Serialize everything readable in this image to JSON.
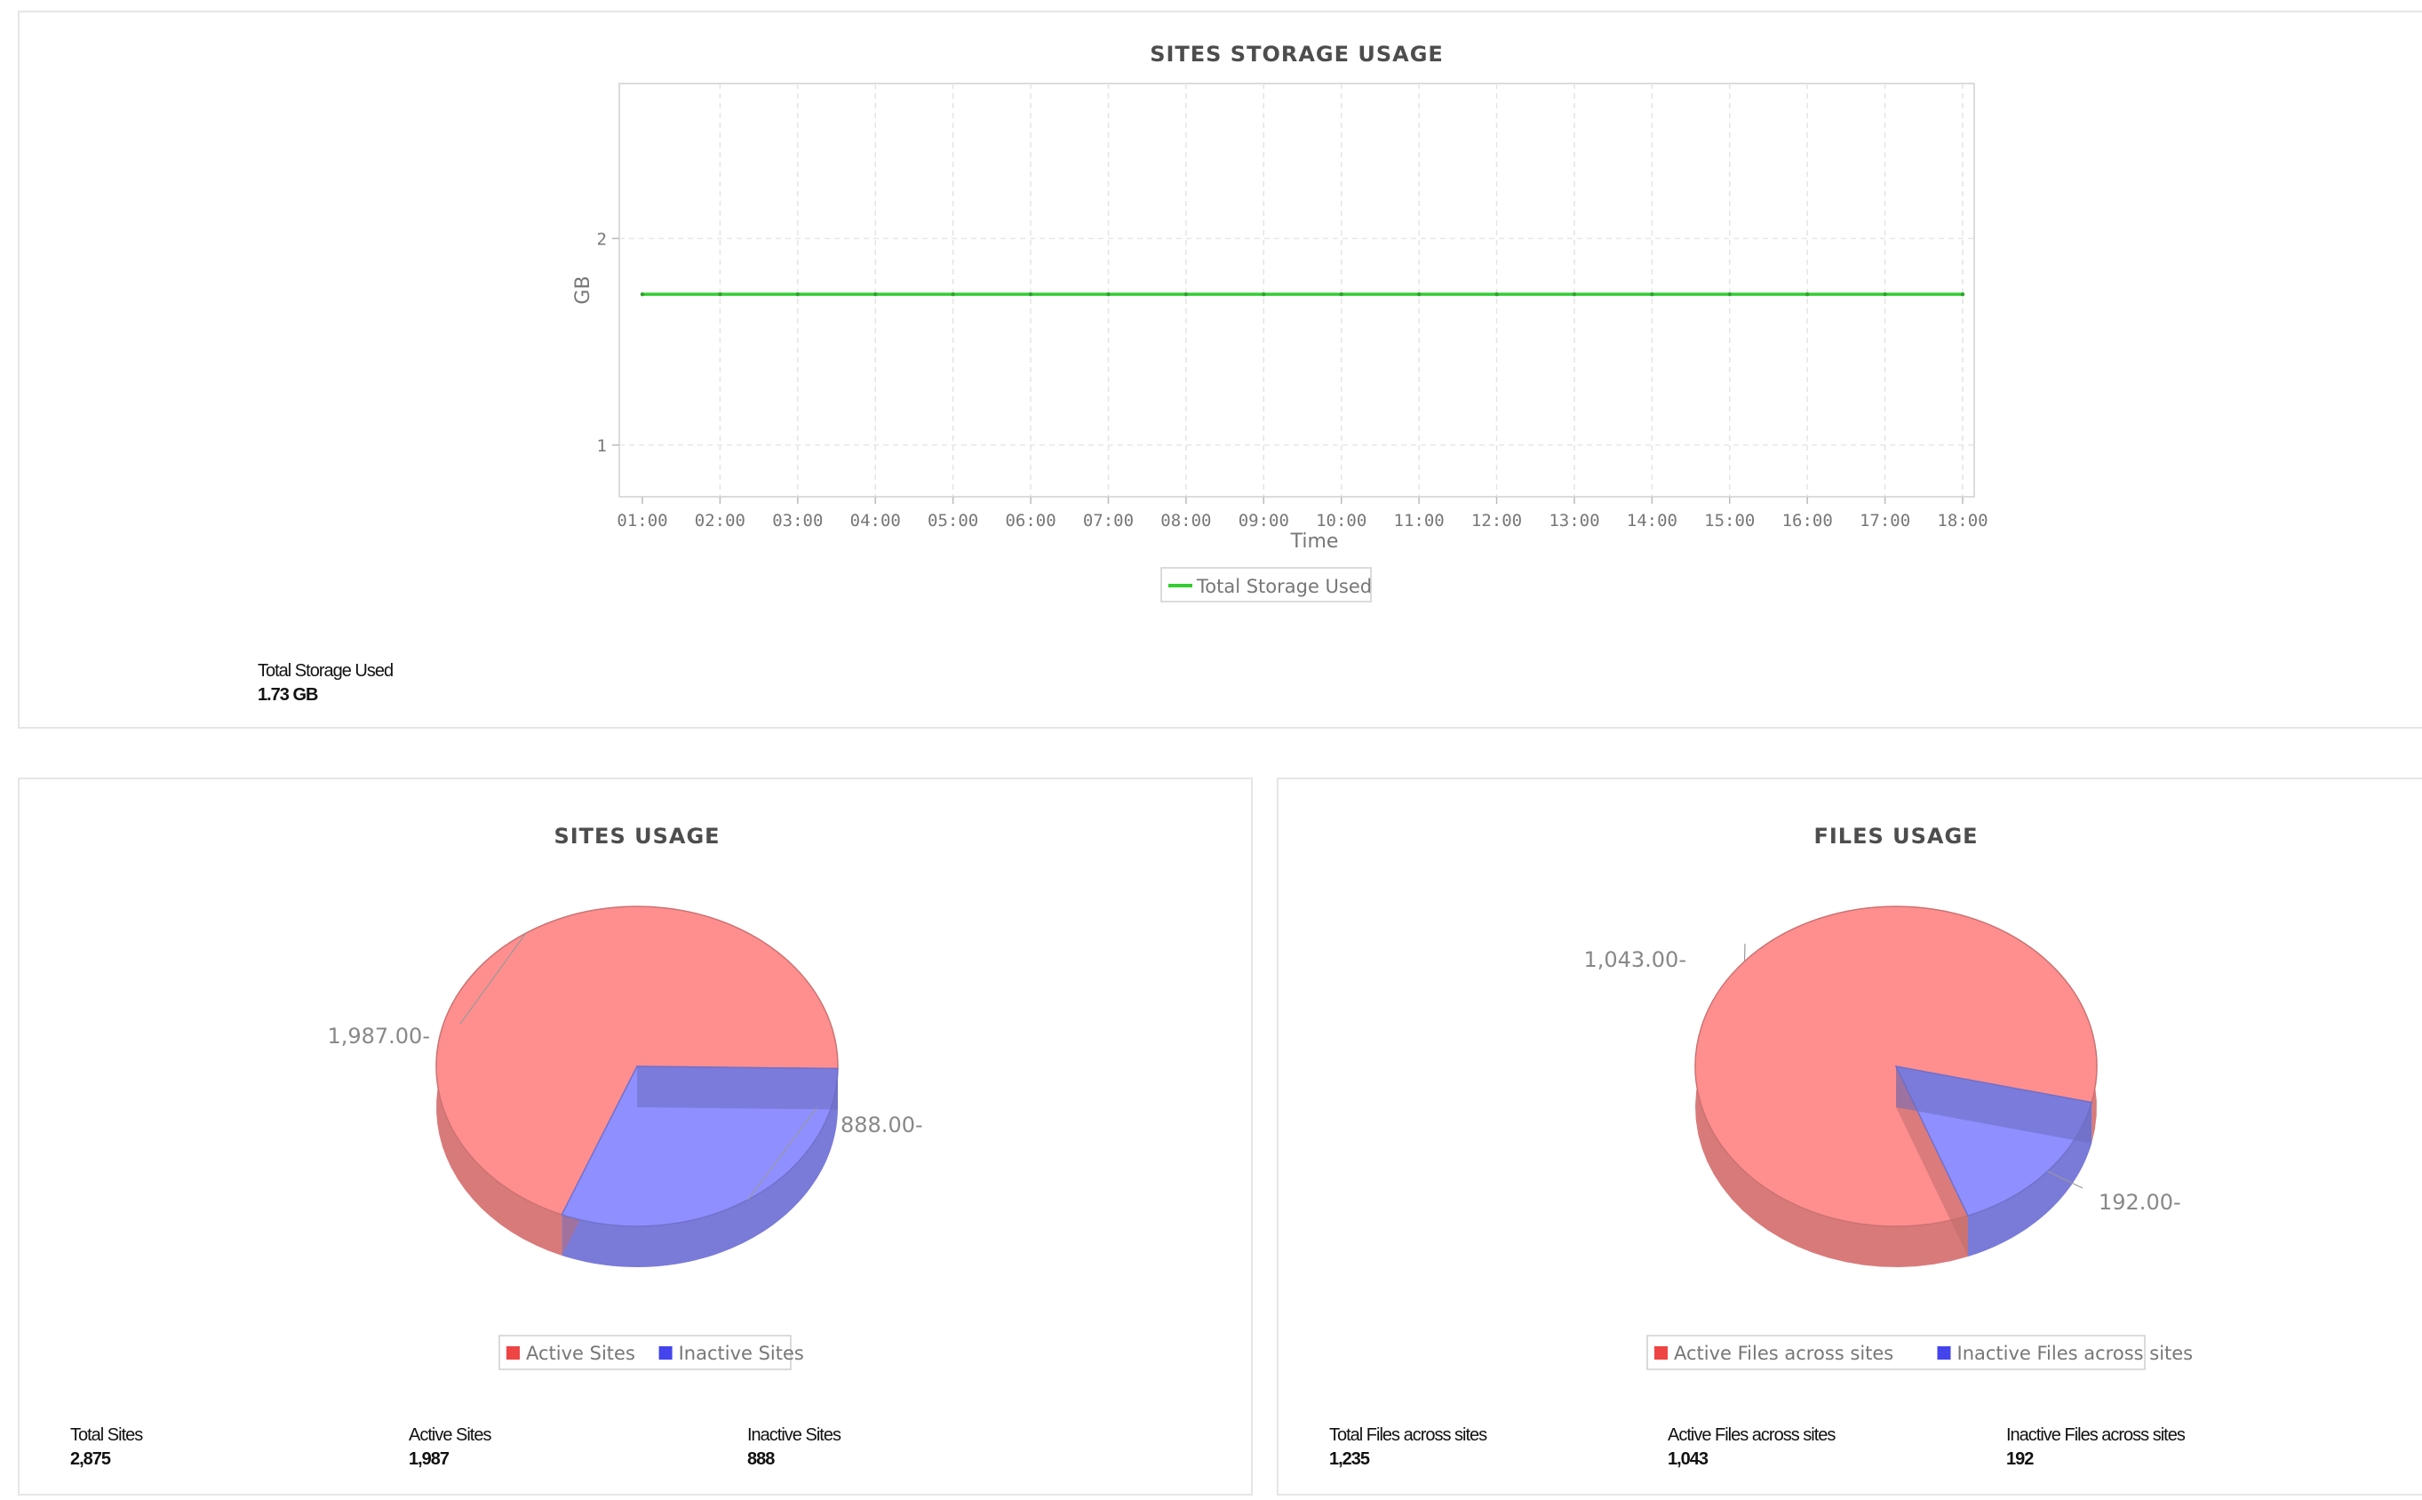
{
  "chart_data": [
    {
      "type": "line",
      "title": "SITES STORAGE USAGE",
      "xlabel": "Time",
      "ylabel": "GB",
      "x": [
        "01:00",
        "02:00",
        "03:00",
        "04:00",
        "05:00",
        "06:00",
        "07:00",
        "08:00",
        "09:00",
        "10:00",
        "11:00",
        "12:00",
        "13:00",
        "14:00",
        "15:00",
        "16:00",
        "17:00",
        "18:00"
      ],
      "yticks": [
        1,
        2
      ],
      "ylim": [
        0.75,
        2.75
      ],
      "series": [
        {
          "name": "Total Storage Used",
          "color": "#33cc33",
          "values": [
            1.73,
            1.73,
            1.73,
            1.73,
            1.73,
            1.73,
            1.73,
            1.73,
            1.73,
            1.73,
            1.73,
            1.73,
            1.73,
            1.73,
            1.73,
            1.73,
            1.73,
            1.73
          ]
        }
      ],
      "grid": true,
      "legend_position": "bottom"
    },
    {
      "type": "pie",
      "title": "SITES USAGE",
      "slices": [
        {
          "name": "Active Sites",
          "value": 1987,
          "label": "1,987.00",
          "color": "#ff8f8f"
        },
        {
          "name": "Inactive Sites",
          "value": 888,
          "label": "888.00",
          "color": "#8f8fff"
        }
      ],
      "legend_position": "bottom"
    },
    {
      "type": "pie",
      "title": "FILES USAGE",
      "slices": [
        {
          "name": "Active Files across sites",
          "value": 1043,
          "label": "1,043.00",
          "color": "#ff8f8f"
        },
        {
          "name": "Inactive Files across sites",
          "value": 192,
          "label": "192.00",
          "color": "#8f8fff"
        }
      ],
      "legend_position": "bottom"
    }
  ],
  "storage_stats": {
    "total_label": "Total Storage Used",
    "total_value": "1.73 GB"
  },
  "sites_stats": [
    {
      "label": "Total Sites",
      "value": "2,875"
    },
    {
      "label": "Active Sites",
      "value": "1,987"
    },
    {
      "label": "Inactive Sites",
      "value": "888"
    }
  ],
  "files_stats": [
    {
      "label": "Total Files across sites",
      "value": "1,235"
    },
    {
      "label": "Active Files across sites",
      "value": "1,043"
    },
    {
      "label": "Inactive Files across sites",
      "value": "192"
    }
  ]
}
